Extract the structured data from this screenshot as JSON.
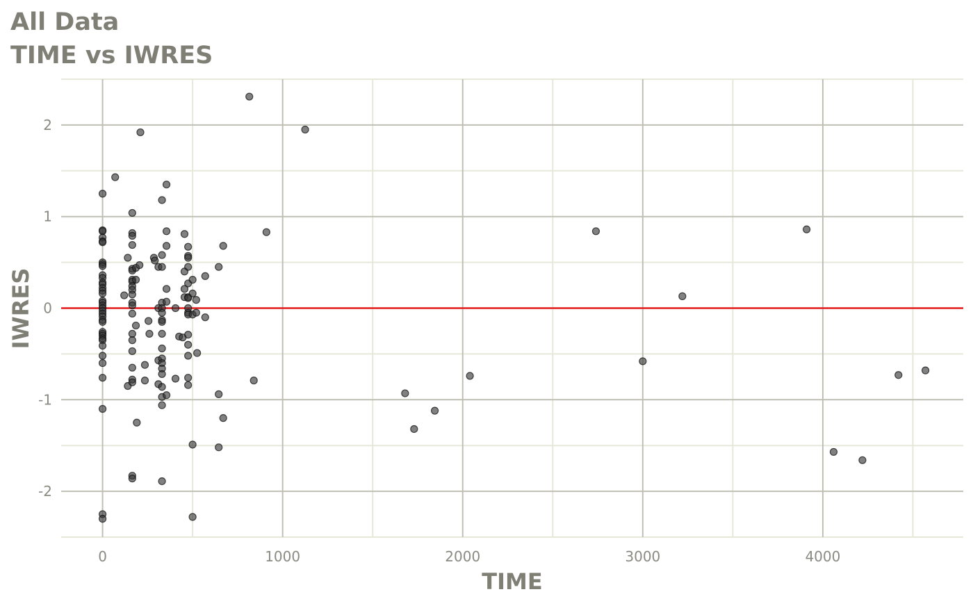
{
  "chart_data": {
    "type": "scatter",
    "title": "All Data",
    "subtitle": "TIME vs IWRES",
    "xlabel": "TIME",
    "ylabel": "IWRES",
    "xlim": [
      -230,
      4780
    ],
    "ylim": [
      -2.5,
      2.5
    ],
    "x_ticks": [
      0,
      1000,
      2000,
      3000,
      4000
    ],
    "x_tick_labels": [
      "0",
      "1000",
      "2000",
      "3000",
      "4000"
    ],
    "y_ticks": [
      2,
      1,
      0,
      -1,
      -2
    ],
    "y_tick_labels": [
      "2",
      "1",
      "0",
      "-1",
      "-2"
    ],
    "grid": true,
    "reference_line": {
      "y": 0,
      "color": "#e31a1c"
    },
    "point_color": "#333333",
    "points": [
      [
        0,
        1.25
      ],
      [
        0,
        0.85
      ],
      [
        0,
        0.84
      ],
      [
        0,
        0.77
      ],
      [
        0,
        0.73
      ],
      [
        0,
        0.72
      ],
      [
        0,
        0.5
      ],
      [
        0,
        0.48
      ],
      [
        0,
        0.46
      ],
      [
        0,
        0.36
      ],
      [
        0,
        0.33
      ],
      [
        0,
        0.28
      ],
      [
        0,
        0.26
      ],
      [
        0,
        0.22
      ],
      [
        0,
        0.19
      ],
      [
        0,
        0.16
      ],
      [
        0,
        0.08
      ],
      [
        0,
        0.06
      ],
      [
        0,
        0.03
      ],
      [
        0,
        0.0
      ],
      [
        0,
        -0.03
      ],
      [
        0,
        -0.06
      ],
      [
        0,
        -0.09
      ],
      [
        0,
        -0.13
      ],
      [
        0,
        -0.15
      ],
      [
        0,
        -0.26
      ],
      [
        0,
        -0.28
      ],
      [
        0,
        -0.3
      ],
      [
        0,
        -0.33
      ],
      [
        0,
        -0.35
      ],
      [
        0,
        -0.41
      ],
      [
        0,
        -0.52
      ],
      [
        0,
        -0.6
      ],
      [
        0,
        -0.76
      ],
      [
        0,
        -1.1
      ],
      [
        0,
        -2.25
      ],
      [
        0,
        -2.3
      ],
      [
        70,
        1.43
      ],
      [
        120,
        0.14
      ],
      [
        140,
        0.55
      ],
      [
        140,
        -0.85
      ],
      [
        165,
        1.04
      ],
      [
        165,
        0.82
      ],
      [
        165,
        0.79
      ],
      [
        165,
        0.69
      ],
      [
        165,
        0.43
      ],
      [
        165,
        0.41
      ],
      [
        165,
        0.31
      ],
      [
        165,
        0.29
      ],
      [
        165,
        0.24
      ],
      [
        165,
        0.2
      ],
      [
        165,
        0.15
      ],
      [
        165,
        0.06
      ],
      [
        165,
        0.03
      ],
      [
        165,
        -0.06
      ],
      [
        165,
        -0.28
      ],
      [
        165,
        -0.35
      ],
      [
        165,
        -0.47
      ],
      [
        165,
        -0.65
      ],
      [
        165,
        -0.78
      ],
      [
        165,
        -0.81
      ],
      [
        165,
        -1.83
      ],
      [
        165,
        -1.86
      ],
      [
        185,
        0.44
      ],
      [
        185,
        0.31
      ],
      [
        185,
        -0.19
      ],
      [
        190,
        -1.25
      ],
      [
        205,
        0.47
      ],
      [
        210,
        1.92
      ],
      [
        235,
        -0.62
      ],
      [
        235,
        -0.79
      ],
      [
        255,
        -0.14
      ],
      [
        260,
        -0.28
      ],
      [
        285,
        0.55
      ],
      [
        290,
        0.52
      ],
      [
        310,
        0.45
      ],
      [
        310,
        0.0
      ],
      [
        310,
        -0.57
      ],
      [
        310,
        -0.83
      ],
      [
        330,
        1.18
      ],
      [
        330,
        0.58
      ],
      [
        330,
        0.45
      ],
      [
        330,
        0.06
      ],
      [
        330,
        0.0
      ],
      [
        330,
        -0.05
      ],
      [
        330,
        -0.13
      ],
      [
        330,
        -0.15
      ],
      [
        330,
        -0.28
      ],
      [
        330,
        -0.44
      ],
      [
        330,
        -0.55
      ],
      [
        330,
        -0.6
      ],
      [
        330,
        -0.66
      ],
      [
        330,
        -0.72
      ],
      [
        330,
        -0.86
      ],
      [
        330,
        -0.97
      ],
      [
        330,
        -1.06
      ],
      [
        330,
        -1.89
      ],
      [
        355,
        1.35
      ],
      [
        355,
        0.84
      ],
      [
        355,
        0.68
      ],
      [
        355,
        0.21
      ],
      [
        355,
        0.07
      ],
      [
        355,
        -0.95
      ],
      [
        405,
        0.0
      ],
      [
        405,
        -0.77
      ],
      [
        425,
        -0.31
      ],
      [
        445,
        -0.32
      ],
      [
        455,
        0.81
      ],
      [
        455,
        0.4
      ],
      [
        455,
        0.21
      ],
      [
        455,
        0.12
      ],
      [
        475,
        0.67
      ],
      [
        475,
        0.57
      ],
      [
        475,
        0.55
      ],
      [
        475,
        0.45
      ],
      [
        475,
        0.27
      ],
      [
        475,
        0.12
      ],
      [
        475,
        0.11
      ],
      [
        475,
        0.0
      ],
      [
        475,
        -0.05
      ],
      [
        475,
        -0.07
      ],
      [
        475,
        -0.29
      ],
      [
        475,
        -0.4
      ],
      [
        475,
        -0.52
      ],
      [
        475,
        -0.76
      ],
      [
        475,
        -0.84
      ],
      [
        500,
        0.31
      ],
      [
        500,
        0.16
      ],
      [
        500,
        -0.07
      ],
      [
        500,
        -1.49
      ],
      [
        500,
        -2.28
      ],
      [
        520,
        0.09
      ],
      [
        520,
        -0.05
      ],
      [
        525,
        -0.49
      ],
      [
        570,
        0.35
      ],
      [
        570,
        -0.1
      ],
      [
        645,
        0.45
      ],
      [
        645,
        -0.94
      ],
      [
        645,
        -1.52
      ],
      [
        670,
        0.68
      ],
      [
        670,
        -1.2
      ],
      [
        815,
        2.31
      ],
      [
        840,
        -0.79
      ],
      [
        910,
        0.83
      ],
      [
        1125,
        1.95
      ],
      [
        1680,
        -0.93
      ],
      [
        1730,
        -1.32
      ],
      [
        1845,
        -1.12
      ],
      [
        2040,
        -0.74
      ],
      [
        2740,
        0.84
      ],
      [
        3000,
        -0.58
      ],
      [
        3220,
        0.13
      ],
      [
        3910,
        0.86
      ],
      [
        4060,
        -1.57
      ],
      [
        4220,
        -1.66
      ],
      [
        4420,
        -0.73
      ],
      [
        4570,
        -0.68
      ]
    ]
  }
}
